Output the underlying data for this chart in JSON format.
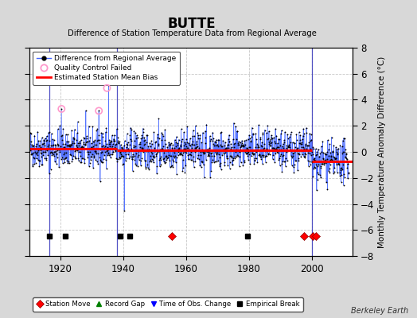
{
  "title": "BUTTE",
  "subtitle": "Difference of Station Temperature Data from Regional Average",
  "ylabel": "Monthly Temperature Anomaly Difference (°C)",
  "credit": "Berkeley Earth",
  "xlim": [
    1910,
    2013
  ],
  "ylim": [
    -8,
    8
  ],
  "yticks": [
    -8,
    -6,
    -4,
    -2,
    0,
    2,
    4,
    6,
    8
  ],
  "xticks": [
    1920,
    1940,
    1960,
    1980,
    2000
  ],
  "bg_color": "#d8d8d8",
  "plot_bg_color": "#ffffff",
  "grid_color": "#b0b0b0",
  "bias_color": "#ff0000",
  "line_color": "#4466ff",
  "marker_color": "#000000",
  "qc_color": "#ff99cc",
  "station_move_years": [
    1955.5,
    1997.5,
    2000.3,
    2001.5
  ],
  "empirical_break_years": [
    1916.5,
    1921.5,
    1939.0,
    1942.0,
    1979.5
  ],
  "vertical_lines": [
    1916.5,
    1938.0,
    2000.0
  ],
  "bias_segments": [
    {
      "x": [
        1910,
        1916.5
      ],
      "y": [
        0.25,
        0.25
      ]
    },
    {
      "x": [
        1916.5,
        1938.0
      ],
      "y": [
        0.25,
        0.25
      ]
    },
    {
      "x": [
        1938.0,
        2000.0
      ],
      "y": [
        0.15,
        0.15
      ]
    },
    {
      "x": [
        2000.0,
        2013
      ],
      "y": [
        -0.75,
        -0.75
      ]
    }
  ],
  "qc_years": [
    1920.3,
    1934.8,
    1932.2
  ],
  "qc_vals": [
    3.3,
    4.9,
    3.15
  ],
  "seed": 42,
  "n_points": 1180,
  "year_start": 1910.0,
  "year_end": 2011.8
}
